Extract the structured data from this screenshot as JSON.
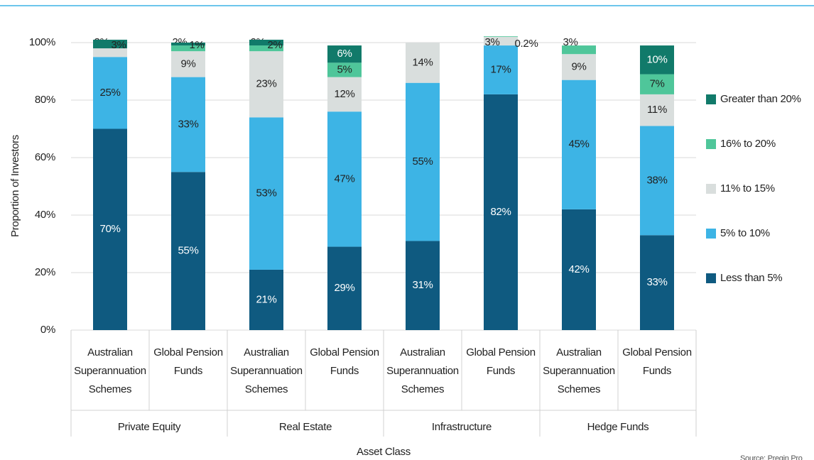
{
  "chart_data": {
    "type": "stacked_bar",
    "groups": [
      "Private Equity",
      "Real Estate",
      "Infrastructure",
      "Hedge Funds"
    ],
    "categories": [
      "Australian Superannuation Schemes",
      "Global Pension Funds",
      "Australian Superannuation Schemes",
      "Global Pension Funds",
      "Australian Superannuation Schemes",
      "Global Pension Funds",
      "Australian Superannuation Schemes",
      "Global Pension Funds"
    ],
    "series": [
      {
        "name": "Less than 5%",
        "color": "#0f5a80",
        "values": [
          70,
          55,
          21,
          29,
          31,
          82,
          42,
          33
        ],
        "value_labels": [
          "70%",
          "55%",
          "21%",
          "29%",
          "31%",
          "82%",
          "42%",
          "33%"
        ]
      },
      {
        "name": "5% to 10%",
        "color": "#3db4e5",
        "values": [
          25,
          33,
          53,
          47,
          55,
          17,
          45,
          38
        ],
        "value_labels": [
          "25%",
          "33%",
          "53%",
          "47%",
          "55%",
          "17%",
          "45%",
          "38%"
        ]
      },
      {
        "name": "11% to 15%",
        "color": "#d9dedd",
        "values": [
          3,
          9,
          23,
          12,
          14,
          3,
          9,
          11
        ],
        "value_labels": [
          "3%",
          "9%",
          "23%",
          "12%",
          "14%",
          "3%",
          "9%",
          "11%"
        ]
      },
      {
        "name": "16% to 20%",
        "color": "#4fc69a",
        "values": [
          null,
          2,
          2,
          5,
          null,
          0.2,
          3,
          7
        ],
        "value_labels": [
          null,
          "2%",
          "2%",
          "5%",
          null,
          "0.2%",
          "3%",
          "7%"
        ]
      },
      {
        "name": "Greater than 20%",
        "color": "#117a6a",
        "values": [
          3,
          1,
          2,
          6,
          null,
          null,
          null,
          10
        ],
        "value_labels": [
          "3%",
          "1%",
          "2%",
          "6%",
          null,
          null,
          null,
          "10%"
        ]
      }
    ],
    "ylim": [
      0,
      100
    ],
    "yticks": [
      {
        "value": 0,
        "label": "0%"
      },
      {
        "value": 20,
        "label": "20%"
      },
      {
        "value": 40,
        "label": "40%"
      },
      {
        "value": 60,
        "label": "60%"
      },
      {
        "value": 80,
        "label": "80%"
      },
      {
        "value": 100,
        "label": "100%"
      }
    ],
    "ylabel": "Proportion of Investors",
    "xlabel": "Asset Class",
    "source": "Source: Preqin Pro",
    "grid": true
  }
}
